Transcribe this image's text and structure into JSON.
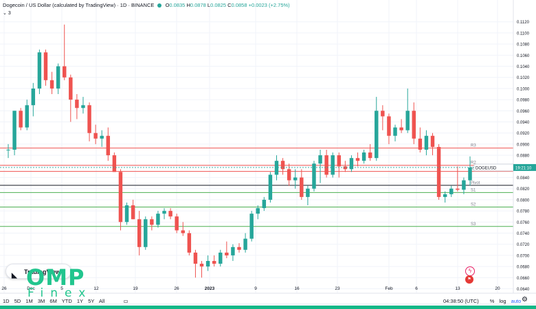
{
  "header": {
    "title": "Dogecoin / US Dollar (calculated by TradingView) · 1D · BINANCE",
    "o_label": "O",
    "o_value": "0.0835",
    "h_label": "H",
    "h_value": "0.0878",
    "l_label": "L",
    "l_value": "0.0825",
    "c_label": "C",
    "c_value": "0.0858",
    "change": "+0.0023 (+2.75%)",
    "indicator_count": "3"
  },
  "timeframes": [
    "1D",
    "5D",
    "1M",
    "3M",
    "6M",
    "YTD",
    "1Y",
    "5Y",
    "All"
  ],
  "footer": {
    "time": "04:38:50 (UTC)",
    "percent": "%",
    "log": "log",
    "auto": "auto"
  },
  "symbol_tag": {
    "symbol": "DOGEUSD",
    "countdown": "19:21:10"
  },
  "logo": {
    "tradingview": "TradingView",
    "omp": "OMP",
    "finex": "Finex"
  },
  "colors": {
    "up": "#26a69a",
    "down": "#ef5350",
    "resistance": "#ef5350",
    "support": "#4caf50",
    "pivot": "#131722",
    "accent": "#2962ff"
  },
  "chart_data": {
    "type": "candlestick",
    "y_ticks": [
      "0.1120",
      "0.1100",
      "0.1080",
      "0.1060",
      "0.1040",
      "0.1020",
      "0.1000",
      "0.0980",
      "0.0960",
      "0.0940",
      "0.0920",
      "0.0900",
      "0.0880",
      "0.0860",
      "0.0840",
      "0.0820",
      "0.0800",
      "0.0780",
      "0.0760",
      "0.0740",
      "0.0720",
      "0.0700",
      "0.0680",
      "0.0660",
      "0.0640"
    ],
    "ylim": [
      0.0632,
      0.1132
    ],
    "x_ticks": [
      "26",
      "Dec",
      "5",
      "12",
      "19",
      "26",
      "2023",
      "9",
      "16",
      "23",
      "Feb",
      "6",
      "13",
      "20"
    ],
    "pivot_levels": [
      {
        "name": "R3",
        "value": 0.0893,
        "color": "#ef5350"
      },
      {
        "name": "R2",
        "value": 0.0862,
        "color": "#ef5350"
      },
      {
        "name": "R1",
        "value": 0.0851,
        "color": "#ef5350"
      },
      {
        "name": "Pivot",
        "value": 0.0826,
        "color": "#131722"
      },
      {
        "name": "S1",
        "value": 0.0813,
        "color": "#4caf50"
      },
      {
        "name": "S2",
        "value": 0.0787,
        "color": "#4caf50"
      },
      {
        "name": "S3",
        "value": 0.0752,
        "color": "#4caf50"
      }
    ],
    "candles": [
      {
        "o": 0.089,
        "h": 0.09,
        "l": 0.0875,
        "c": 0.089
      },
      {
        "o": 0.089,
        "h": 0.096,
        "l": 0.088,
        "c": 0.096
      },
      {
        "o": 0.096,
        "h": 0.0965,
        "l": 0.0925,
        "c": 0.093
      },
      {
        "o": 0.093,
        "h": 0.098,
        "l": 0.0925,
        "c": 0.097
      },
      {
        "o": 0.097,
        "h": 0.101,
        "l": 0.095,
        "c": 0.1
      },
      {
        "o": 0.1,
        "h": 0.107,
        "l": 0.099,
        "c": 0.1065
      },
      {
        "o": 0.1065,
        "h": 0.107,
        "l": 0.1005,
        "c": 0.1015
      },
      {
        "o": 0.1015,
        "h": 0.103,
        "l": 0.099,
        "c": 0.1
      },
      {
        "o": 0.1,
        "h": 0.1045,
        "l": 0.099,
        "c": 0.104
      },
      {
        "o": 0.104,
        "h": 0.1115,
        "l": 0.1015,
        "c": 0.102
      },
      {
        "o": 0.102,
        "h": 0.1025,
        "l": 0.094,
        "c": 0.098
      },
      {
        "o": 0.098,
        "h": 0.099,
        "l": 0.0945,
        "c": 0.0965
      },
      {
        "o": 0.0965,
        "h": 0.0985,
        "l": 0.0955,
        "c": 0.097
      },
      {
        "o": 0.097,
        "h": 0.0975,
        "l": 0.0905,
        "c": 0.092
      },
      {
        "o": 0.092,
        "h": 0.0935,
        "l": 0.09,
        "c": 0.091
      },
      {
        "o": 0.091,
        "h": 0.0925,
        "l": 0.0895,
        "c": 0.0915
      },
      {
        "o": 0.0915,
        "h": 0.093,
        "l": 0.087,
        "c": 0.088
      },
      {
        "o": 0.088,
        "h": 0.0885,
        "l": 0.085,
        "c": 0.085
      },
      {
        "o": 0.085,
        "h": 0.0855,
        "l": 0.0745,
        "c": 0.076
      },
      {
        "o": 0.076,
        "h": 0.0795,
        "l": 0.0755,
        "c": 0.079
      },
      {
        "o": 0.079,
        "h": 0.08,
        "l": 0.0765,
        "c": 0.0765
      },
      {
        "o": 0.0765,
        "h": 0.078,
        "l": 0.07,
        "c": 0.0715
      },
      {
        "o": 0.0715,
        "h": 0.077,
        "l": 0.071,
        "c": 0.0765
      },
      {
        "o": 0.0765,
        "h": 0.077,
        "l": 0.0745,
        "c": 0.0755
      },
      {
        "o": 0.0755,
        "h": 0.078,
        "l": 0.075,
        "c": 0.0775
      },
      {
        "o": 0.0775,
        "h": 0.0785,
        "l": 0.0765,
        "c": 0.078
      },
      {
        "o": 0.078,
        "h": 0.0785,
        "l": 0.0765,
        "c": 0.077
      },
      {
        "o": 0.077,
        "h": 0.0775,
        "l": 0.074,
        "c": 0.0745
      },
      {
        "o": 0.0745,
        "h": 0.076,
        "l": 0.0735,
        "c": 0.074
      },
      {
        "o": 0.074,
        "h": 0.0745,
        "l": 0.07,
        "c": 0.0705
      },
      {
        "o": 0.0705,
        "h": 0.071,
        "l": 0.066,
        "c": 0.0685
      },
      {
        "o": 0.0685,
        "h": 0.069,
        "l": 0.066,
        "c": 0.068
      },
      {
        "o": 0.068,
        "h": 0.07,
        "l": 0.0672,
        "c": 0.069
      },
      {
        "o": 0.069,
        "h": 0.07,
        "l": 0.068,
        "c": 0.0685
      },
      {
        "o": 0.0685,
        "h": 0.071,
        "l": 0.068,
        "c": 0.0705
      },
      {
        "o": 0.0705,
        "h": 0.0725,
        "l": 0.0695,
        "c": 0.07
      },
      {
        "o": 0.07,
        "h": 0.072,
        "l": 0.069,
        "c": 0.0715
      },
      {
        "o": 0.0715,
        "h": 0.0722,
        "l": 0.0705,
        "c": 0.071
      },
      {
        "o": 0.071,
        "h": 0.074,
        "l": 0.0705,
        "c": 0.073
      },
      {
        "o": 0.073,
        "h": 0.078,
        "l": 0.0725,
        "c": 0.0775
      },
      {
        "o": 0.0775,
        "h": 0.079,
        "l": 0.0765,
        "c": 0.0785
      },
      {
        "o": 0.0785,
        "h": 0.0805,
        "l": 0.078,
        "c": 0.08
      },
      {
        "o": 0.08,
        "h": 0.085,
        "l": 0.0795,
        "c": 0.0845
      },
      {
        "o": 0.0845,
        "h": 0.088,
        "l": 0.0835,
        "c": 0.087
      },
      {
        "o": 0.087,
        "h": 0.0875,
        "l": 0.0845,
        "c": 0.0855
      },
      {
        "o": 0.0855,
        "h": 0.0865,
        "l": 0.0825,
        "c": 0.0835
      },
      {
        "o": 0.0835,
        "h": 0.0855,
        "l": 0.082,
        "c": 0.084
      },
      {
        "o": 0.084,
        "h": 0.0855,
        "l": 0.08,
        "c": 0.0805
      },
      {
        "o": 0.0805,
        "h": 0.0825,
        "l": 0.079,
        "c": 0.082
      },
      {
        "o": 0.082,
        "h": 0.087,
        "l": 0.0815,
        "c": 0.0865
      },
      {
        "o": 0.0865,
        "h": 0.089,
        "l": 0.083,
        "c": 0.088
      },
      {
        "o": 0.088,
        "h": 0.089,
        "l": 0.084,
        "c": 0.0845
      },
      {
        "o": 0.0845,
        "h": 0.0885,
        "l": 0.084,
        "c": 0.088
      },
      {
        "o": 0.088,
        "h": 0.0885,
        "l": 0.084,
        "c": 0.086
      },
      {
        "o": 0.086,
        "h": 0.087,
        "l": 0.085,
        "c": 0.0855
      },
      {
        "o": 0.0855,
        "h": 0.088,
        "l": 0.085,
        "c": 0.0875
      },
      {
        "o": 0.0875,
        "h": 0.0885,
        "l": 0.086,
        "c": 0.087
      },
      {
        "o": 0.087,
        "h": 0.089,
        "l": 0.0865,
        "c": 0.0885
      },
      {
        "o": 0.0885,
        "h": 0.09,
        "l": 0.087,
        "c": 0.0875
      },
      {
        "o": 0.0875,
        "h": 0.0985,
        "l": 0.087,
        "c": 0.096
      },
      {
        "o": 0.096,
        "h": 0.097,
        "l": 0.0925,
        "c": 0.095
      },
      {
        "o": 0.095,
        "h": 0.0955,
        "l": 0.09,
        "c": 0.0915
      },
      {
        "o": 0.0915,
        "h": 0.0935,
        "l": 0.0905,
        "c": 0.093
      },
      {
        "o": 0.093,
        "h": 0.0945,
        "l": 0.092,
        "c": 0.0925
      },
      {
        "o": 0.0925,
        "h": 0.1,
        "l": 0.092,
        "c": 0.096
      },
      {
        "o": 0.096,
        "h": 0.0975,
        "l": 0.09,
        "c": 0.091
      },
      {
        "o": 0.091,
        "h": 0.093,
        "l": 0.0885,
        "c": 0.089
      },
      {
        "o": 0.089,
        "h": 0.0925,
        "l": 0.088,
        "c": 0.0915
      },
      {
        "o": 0.0915,
        "h": 0.092,
        "l": 0.088,
        "c": 0.0895
      },
      {
        "o": 0.0895,
        "h": 0.09,
        "l": 0.08,
        "c": 0.0805
      },
      {
        "o": 0.0805,
        "h": 0.0815,
        "l": 0.0795,
        "c": 0.081
      },
      {
        "o": 0.081,
        "h": 0.0825,
        "l": 0.0805,
        "c": 0.082
      },
      {
        "o": 0.082,
        "h": 0.086,
        "l": 0.0815,
        "c": 0.0818
      },
      {
        "o": 0.0818,
        "h": 0.084,
        "l": 0.081,
        "c": 0.0835
      },
      {
        "o": 0.0835,
        "h": 0.0878,
        "l": 0.0825,
        "c": 0.0858
      }
    ]
  }
}
